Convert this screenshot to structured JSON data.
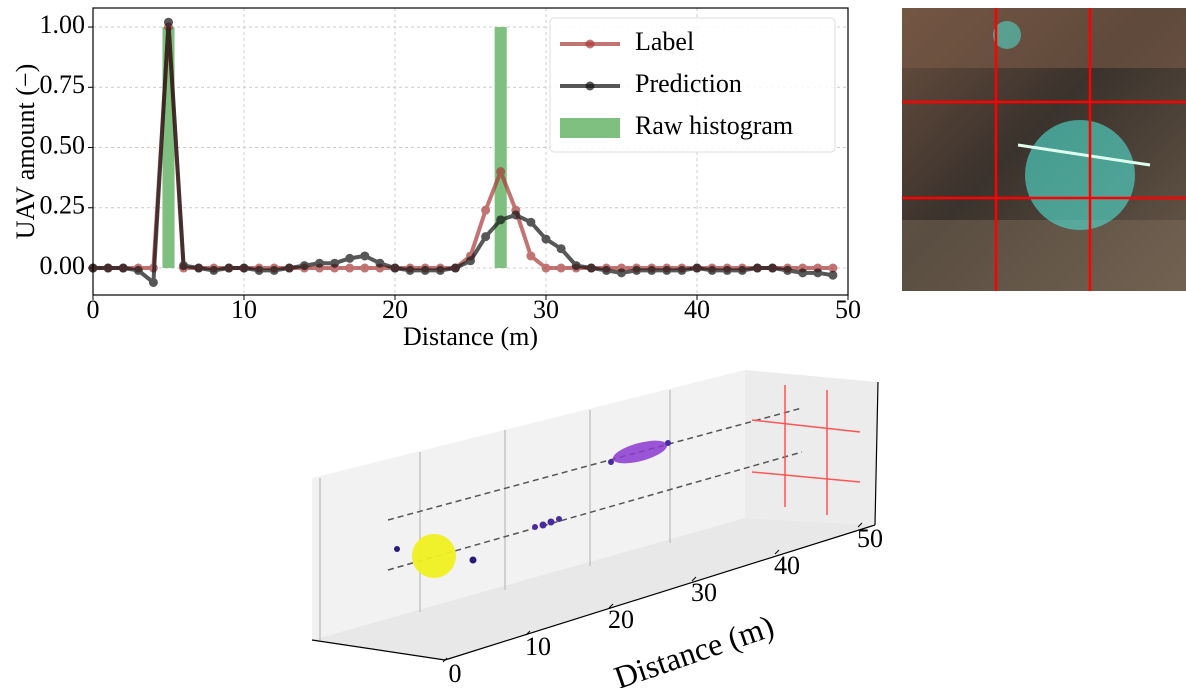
{
  "chart_data": [
    {
      "type": "line",
      "ylabel": "UAV amount (−)",
      "xlabel": "Distance (m)",
      "x": [
        0,
        1,
        2,
        3,
        4,
        5,
        6,
        7,
        8,
        9,
        10,
        11,
        12,
        13,
        14,
        15,
        16,
        17,
        18,
        19,
        20,
        21,
        22,
        23,
        24,
        25,
        26,
        27,
        28,
        29,
        30,
        31,
        32,
        33,
        34,
        35,
        36,
        37,
        38,
        39,
        40,
        41,
        42,
        43,
        44,
        45,
        46,
        47,
        48,
        49
      ],
      "series": [
        {
          "name": "Label",
          "color": "#a83a36",
          "values": [
            0,
            0,
            0,
            0,
            0,
            1.0,
            0,
            0,
            0,
            0,
            0,
            0,
            0,
            0,
            0,
            0,
            0,
            0,
            0,
            0,
            0,
            0,
            0,
            0,
            0,
            0.05,
            0.24,
            0.4,
            0.24,
            0.05,
            0,
            0,
            0,
            0,
            0,
            0,
            0,
            0,
            0,
            0,
            0,
            0,
            0,
            0,
            0,
            0,
            0,
            0,
            0,
            0
          ]
        },
        {
          "name": "Prediction",
          "color": "#111111",
          "values": [
            0,
            0,
            0,
            -0.01,
            -0.06,
            1.02,
            0.01,
            0,
            -0.01,
            0,
            0,
            -0.01,
            -0.01,
            0,
            0.01,
            0.02,
            0.02,
            0.04,
            0.05,
            0.02,
            0,
            -0.01,
            -0.01,
            -0.01,
            0,
            0.03,
            0.13,
            0.2,
            0.22,
            0.19,
            0.12,
            0.08,
            0.01,
            0,
            -0.01,
            -0.02,
            -0.01,
            -0.01,
            -0.01,
            -0.01,
            0,
            -0.01,
            -0.01,
            -0.01,
            0,
            0,
            -0.01,
            -0.02,
            -0.02,
            -0.03
          ]
        },
        {
          "name": "Raw histogram",
          "color": "#7fbf7f",
          "type": "bar",
          "x": [
            5,
            27
          ],
          "values": [
            1,
            1
          ]
        }
      ],
      "xlim": [
        0,
        50
      ],
      "xticks": [
        0,
        10,
        20,
        30,
        40,
        50
      ],
      "ylim": [
        -0.112,
        1.079
      ],
      "yticks": [
        {
          "value": 0,
          "label": "0.00"
        },
        {
          "value": 0.25,
          "label": "0.25"
        },
        {
          "value": 0.5,
          "label": "0.50"
        },
        {
          "value": 0.75,
          "label": "0.75"
        },
        {
          "value": 1,
          "label": "1.00"
        }
      ],
      "grid": true,
      "legend": "upper right"
    },
    {
      "type": "scatter3d",
      "xlabel": "Distance (m)",
      "xlim": [
        0,
        50
      ],
      "xticks": [
        0,
        10,
        20,
        30,
        40,
        50
      ]
    }
  ]
}
